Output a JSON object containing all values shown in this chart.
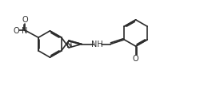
{
  "bg_color": "#ffffff",
  "line_color": "#2b2b2b",
  "line_width": 1.2,
  "text_color": "#2b2b2b",
  "font_size": 7.0,
  "figsize": [
    2.75,
    1.13
  ],
  "dpi": 100,
  "xlim": [
    0,
    10.2
  ],
  "ylim": [
    0.2,
    4.2
  ]
}
